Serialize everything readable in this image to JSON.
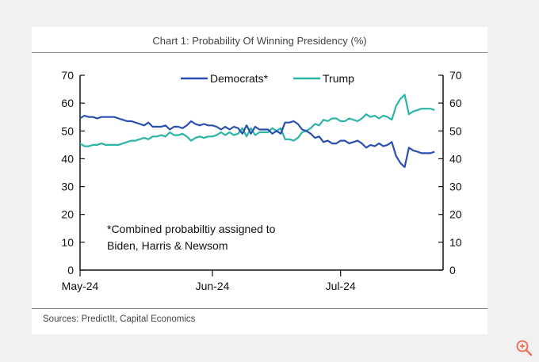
{
  "title": "Chart 1: Probability Of Winning Presidency (%)",
  "source": "Sources: PredictIt, Capital Economics",
  "colors": {
    "democrats": "#2a4fb0",
    "trump": "#2bb5a5",
    "axis": "#111111",
    "icon": "#e8745a"
  },
  "chart_data": {
    "type": "line",
    "title": "Chart 1: Probability Of Winning Presidency (%)",
    "xlabel": "",
    "ylabel": "",
    "ylim": [
      0,
      70
    ],
    "yticks": [
      0,
      10,
      20,
      30,
      40,
      50,
      60,
      70
    ],
    "ytick_labels": [
      "0",
      "10",
      "20",
      "30",
      "40",
      "50",
      "60",
      "70"
    ],
    "xlim": [
      0,
      85
    ],
    "xticks": [
      0,
      31,
      61
    ],
    "xtick_labels": [
      "May-24",
      "Jun-24",
      "Jul-24"
    ],
    "legend": [
      "Democrats*",
      "Trump"
    ],
    "legend_position": "top-center",
    "annotation_lines": [
      "*Combined probabiltiy assigned to",
      "Biden, Harris & Newsom"
    ],
    "series": [
      {
        "name": "Democrats*",
        "x": [
          0,
          1,
          2,
          3,
          4,
          5,
          6,
          7,
          8,
          9,
          10,
          11,
          12,
          13,
          14,
          15,
          16,
          17,
          18,
          19,
          20,
          21,
          22,
          23,
          24,
          25,
          26,
          27,
          28,
          29,
          30,
          31,
          32,
          33,
          34,
          35,
          36,
          37,
          38,
          39,
          40,
          41,
          42,
          43,
          44,
          45,
          46,
          47,
          48,
          49,
          50,
          51,
          52,
          53,
          54,
          55,
          56,
          57,
          58,
          59,
          60,
          61,
          62,
          63,
          64,
          65,
          66,
          67,
          68,
          69,
          70,
          71,
          72,
          73,
          74,
          75,
          76,
          77,
          78,
          79,
          80,
          81,
          82,
          83,
          84,
          85
        ],
        "values": [
          54.5,
          55.5,
          55,
          55,
          54.5,
          55,
          55,
          55,
          55,
          54.5,
          54,
          53.5,
          53.5,
          53,
          52.5,
          52,
          53,
          51.5,
          51.5,
          51.5,
          52,
          50.5,
          51.5,
          51.5,
          51,
          52,
          53.5,
          52.5,
          52,
          52.5,
          52,
          52,
          51.5,
          50.5,
          51.5,
          50.5,
          51.5,
          51,
          49,
          52,
          49,
          51.5,
          50.5,
          50.5,
          50.5,
          49,
          50,
          49,
          53,
          53,
          53.5,
          52.5,
          50.5,
          50,
          49,
          47.5,
          48,
          46,
          46.5,
          45.5,
          45.5,
          46.5,
          46.5,
          45.5,
          46,
          46.5,
          45.5,
          44,
          45,
          44.5,
          45.5,
          44.5,
          45,
          46,
          41,
          38.5,
          37,
          44,
          43,
          42.5,
          42,
          42,
          42,
          42.5,
          null,
          null
        ]
      },
      {
        "name": "Trump",
        "x": [
          0,
          1,
          2,
          3,
          4,
          5,
          6,
          7,
          8,
          9,
          10,
          11,
          12,
          13,
          14,
          15,
          16,
          17,
          18,
          19,
          20,
          21,
          22,
          23,
          24,
          25,
          26,
          27,
          28,
          29,
          30,
          31,
          32,
          33,
          34,
          35,
          36,
          37,
          38,
          39,
          40,
          41,
          42,
          43,
          44,
          45,
          46,
          47,
          48,
          49,
          50,
          51,
          52,
          53,
          54,
          55,
          56,
          57,
          58,
          59,
          60,
          61,
          62,
          63,
          64,
          65,
          66,
          67,
          68,
          69,
          70,
          71,
          72,
          73,
          74,
          75,
          76,
          77,
          78,
          79,
          80,
          81,
          82,
          83,
          84,
          85
        ],
        "values": [
          45.5,
          44.5,
          44.5,
          45,
          45,
          45.5,
          45,
          45,
          45,
          45,
          45.5,
          46,
          46.5,
          46.5,
          47,
          47.5,
          47,
          48,
          48,
          48.5,
          48,
          49.5,
          48.5,
          48.5,
          49,
          48,
          46.5,
          47.5,
          48,
          47.5,
          48,
          48,
          48.5,
          49.5,
          48.5,
          49.5,
          48.5,
          49,
          51,
          48,
          51,
          48.5,
          49.5,
          49.5,
          49.5,
          51,
          50,
          51,
          47,
          47,
          46.5,
          47.5,
          49.5,
          50,
          51,
          52.5,
          52,
          54,
          53.5,
          54.5,
          54.5,
          53.5,
          53.5,
          54.5,
          54,
          53.5,
          54.5,
          56,
          55,
          55.5,
          54.5,
          55.5,
          55,
          54,
          59,
          61.5,
          63,
          56,
          57,
          57.5,
          58,
          58,
          58,
          57.5,
          null,
          null
        ]
      }
    ]
  }
}
